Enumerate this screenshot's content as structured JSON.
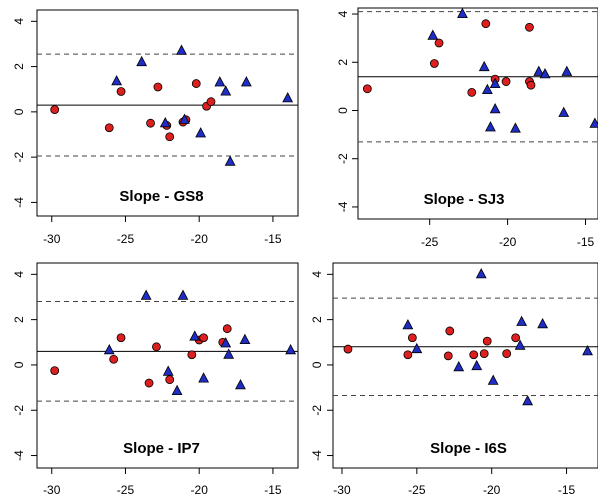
{
  "chart_data": [
    {
      "type": "scatter",
      "title": "Slope - GS8",
      "xlim": [
        -31,
        -13.3
      ],
      "ylim": [
        -4.6,
        4.5
      ],
      "x_ticks": [
        -30,
        -25,
        -20,
        -15
      ],
      "y_ticks": [
        -4,
        -2,
        0,
        2,
        4
      ],
      "x_axis_labels": true,
      "mean_line": 0.3,
      "limit_lines": [
        2.55,
        -1.95
      ],
      "series": [
        {
          "marker": "circle",
          "color": "#dd1f1f",
          "points": [
            [
              -29.8,
              0.1
            ],
            [
              -26.1,
              -0.7
            ],
            [
              -25.3,
              0.9
            ],
            [
              -23.3,
              -0.5
            ],
            [
              -22.8,
              1.1
            ],
            [
              -22.0,
              -1.1
            ],
            [
              -20.9,
              -0.35
            ],
            [
              -20.2,
              1.25
            ],
            [
              -19.5,
              0.25
            ],
            [
              -19.2,
              0.45
            ],
            [
              -21.1,
              -0.45
            ],
            [
              -22.2,
              -0.6
            ]
          ]
        },
        {
          "marker": "triangle",
          "color": "#1f2dc4",
          "points": [
            [
              -25.6,
              1.35
            ],
            [
              -23.9,
              2.2
            ],
            [
              -22.3,
              -0.5
            ],
            [
              -21.2,
              2.7
            ],
            [
              -21.0,
              -0.35
            ],
            [
              -19.9,
              -0.95
            ],
            [
              -18.6,
              1.3
            ],
            [
              -18.2,
              0.9
            ],
            [
              -17.9,
              -2.2
            ],
            [
              -16.8,
              1.3
            ],
            [
              -14.0,
              0.6
            ]
          ]
        }
      ]
    },
    {
      "type": "scatter",
      "title": "Slope - SJ3",
      "xlim": [
        -29.6,
        -14.2
      ],
      "ylim": [
        -4.5,
        4.25
      ],
      "x_ticks": [
        -25,
        -20,
        -15
      ],
      "y_ticks": [
        -4,
        -2,
        0,
        2,
        4
      ],
      "x_axis_labels": true,
      "mean_line": 1.4,
      "limit_lines": [
        4.1,
        -1.3
      ],
      "series": [
        {
          "marker": "circle",
          "color": "#dd1f1f",
          "points": [
            [
              -29.0,
              0.9
            ],
            [
              -24.7,
              1.95
            ],
            [
              -24.4,
              2.8
            ],
            [
              -22.3,
              0.75
            ],
            [
              -21.4,
              3.6
            ],
            [
              -20.8,
              1.3
            ],
            [
              -20.1,
              1.2
            ],
            [
              -18.6,
              3.45
            ],
            [
              -18.6,
              1.2
            ],
            [
              -18.5,
              1.05
            ]
          ]
        },
        {
          "marker": "triangle",
          "color": "#1f2dc4",
          "points": [
            [
              -24.8,
              3.1
            ],
            [
              -22.9,
              4.0
            ],
            [
              -21.5,
              1.8
            ],
            [
              -21.3,
              0.85
            ],
            [
              -21.1,
              -0.7
            ],
            [
              -20.8,
              0.05
            ],
            [
              -20.8,
              1.1
            ],
            [
              -19.5,
              -0.75
            ],
            [
              -18.0,
              1.6
            ],
            [
              -17.6,
              1.5
            ],
            [
              -16.4,
              -0.1
            ],
            [
              -16.2,
              1.6
            ],
            [
              -14.4,
              -0.55
            ]
          ]
        }
      ]
    },
    {
      "type": "scatter",
      "title": "Slope - IP7",
      "xlim": [
        -31,
        -13.3
      ],
      "ylim": [
        -4.55,
        4.5
      ],
      "x_ticks": [
        -30,
        -25,
        -20,
        -15
      ],
      "y_ticks": [
        -4,
        -2,
        0,
        2,
        4
      ],
      "x_axis_labels": true,
      "mean_line": 0.6,
      "limit_lines": [
        2.8,
        -1.6
      ],
      "series": [
        {
          "marker": "circle",
          "color": "#dd1f1f",
          "points": [
            [
              -29.8,
              -0.25
            ],
            [
              -25.3,
              1.2
            ],
            [
              -25.8,
              0.25
            ],
            [
              -23.4,
              -0.8
            ],
            [
              -22.9,
              0.8
            ],
            [
              -22.0,
              -0.65
            ],
            [
              -20.5,
              0.45
            ],
            [
              -20.0,
              1.1
            ],
            [
              -19.7,
              1.2
            ],
            [
              -18.4,
              1.0
            ],
            [
              -18.1,
              1.6
            ]
          ]
        },
        {
          "marker": "triangle",
          "color": "#1f2dc4",
          "points": [
            [
              -26.1,
              0.65
            ],
            [
              -23.6,
              3.05
            ],
            [
              -22.1,
              -0.3
            ],
            [
              -21.5,
              -1.15
            ],
            [
              -21.1,
              3.05
            ],
            [
              -20.3,
              1.25
            ],
            [
              -19.7,
              -0.6
            ],
            [
              -18.2,
              0.95
            ],
            [
              -18.0,
              0.45
            ],
            [
              -17.2,
              -0.9
            ],
            [
              -16.9,
              1.1
            ],
            [
              -13.8,
              0.65
            ]
          ]
        }
      ]
    },
    {
      "type": "scatter",
      "title": "Slope - I6S",
      "xlim": [
        -30.6,
        -12.9
      ],
      "ylim": [
        -4.55,
        4.5
      ],
      "x_ticks": [
        -30,
        -25,
        -20,
        -15
      ],
      "y_ticks": [
        -4,
        -2,
        0,
        2,
        4
      ],
      "x_axis_labels": true,
      "mean_line": 0.8,
      "limit_lines": [
        2.95,
        -1.35
      ],
      "series": [
        {
          "marker": "circle",
          "color": "#dd1f1f",
          "points": [
            [
              -29.6,
              0.7
            ],
            [
              -25.6,
              0.45
            ],
            [
              -25.3,
              1.2
            ],
            [
              -22.8,
              1.5
            ],
            [
              -22.9,
              0.4
            ],
            [
              -21.2,
              0.45
            ],
            [
              -20.5,
              0.5
            ],
            [
              -20.3,
              1.05
            ],
            [
              -19.0,
              0.5
            ],
            [
              -18.4,
              1.2
            ]
          ]
        },
        {
          "marker": "triangle",
          "color": "#1f2dc4",
          "points": [
            [
              -25.6,
              1.75
            ],
            [
              -25.0,
              0.7
            ],
            [
              -22.2,
              -0.1
            ],
            [
              -21.0,
              -0.05
            ],
            [
              -20.7,
              4.0
            ],
            [
              -19.9,
              -0.7
            ],
            [
              -18.0,
              1.9
            ],
            [
              -18.1,
              0.85
            ],
            [
              -17.6,
              -1.6
            ],
            [
              -16.6,
              1.8
            ],
            [
              -13.6,
              0.6
            ]
          ]
        }
      ]
    }
  ]
}
